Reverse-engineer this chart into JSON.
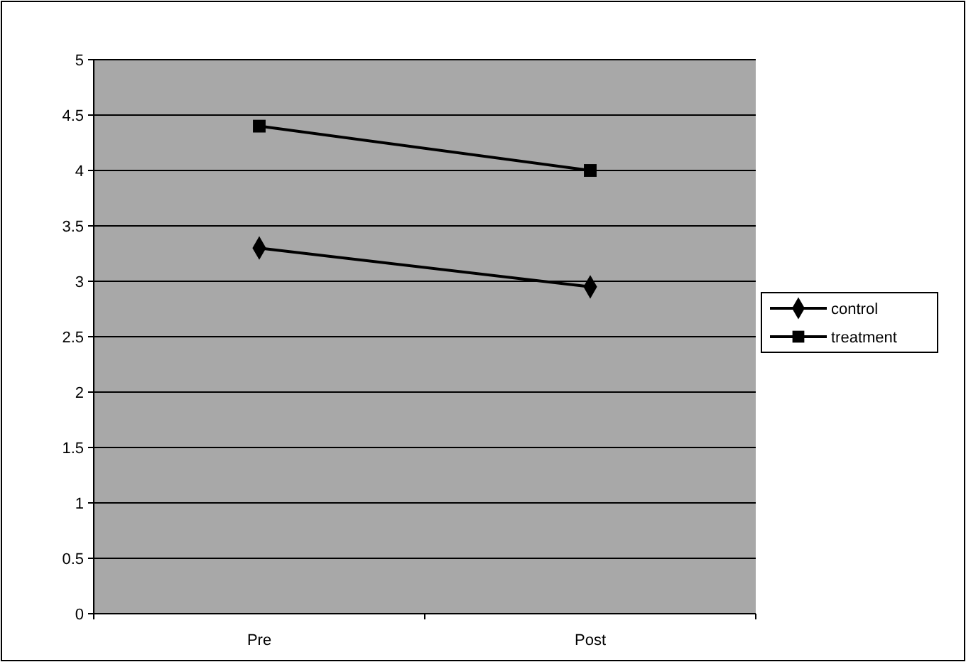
{
  "chart_data": {
    "type": "line",
    "categories": [
      "Pre",
      "Post"
    ],
    "series": [
      {
        "name": "control",
        "color": "#000000",
        "marker": "diamond",
        "values": [
          3.3,
          2.95
        ]
      },
      {
        "name": "treatment",
        "color": "#000000",
        "marker": "square",
        "values": [
          4.4,
          4.0
        ]
      }
    ],
    "ylim": [
      0,
      5
    ],
    "yticks": [
      0,
      0.5,
      1,
      1.5,
      2,
      2.5,
      3,
      3.5,
      4,
      4.5,
      5
    ],
    "grid": "y",
    "legend": "right",
    "line_style": "solid"
  }
}
